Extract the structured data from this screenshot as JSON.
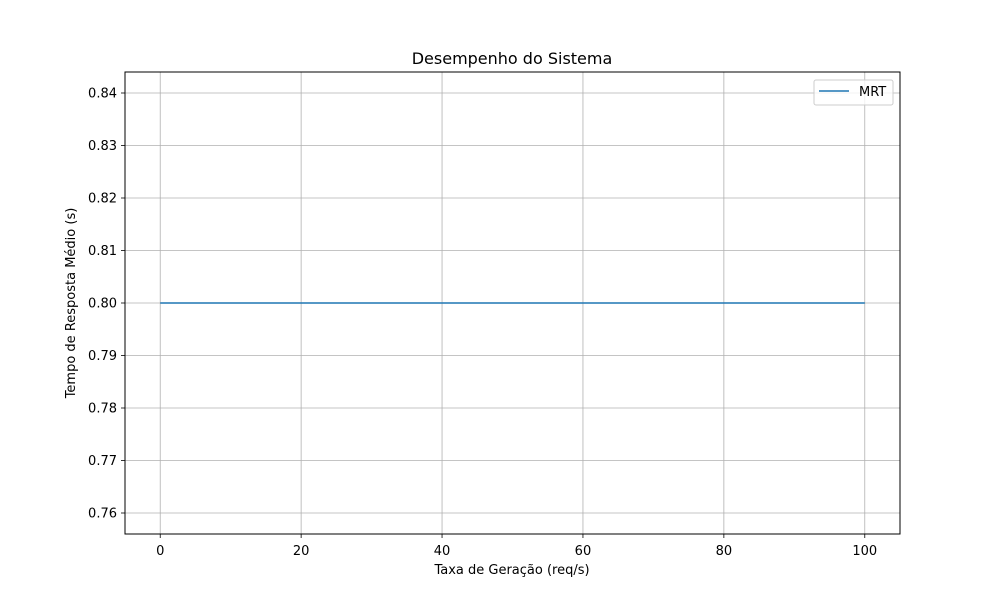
{
  "chart_data": {
    "type": "line",
    "title": "Desempenho do Sistema",
    "xlabel": "Taxa de Geração (req/s)",
    "ylabel": "Tempo de Resposta Médio (s)",
    "x": [
      0,
      100
    ],
    "series": [
      {
        "name": "MRT",
        "values": [
          0.8,
          0.8
        ],
        "color": "#1f77b4"
      }
    ],
    "xlim": [
      -5,
      105
    ],
    "ylim": [
      0.756,
      0.844
    ],
    "xticks": [
      0,
      20,
      40,
      60,
      80,
      100
    ],
    "xtick_labels": [
      "0",
      "20",
      "40",
      "60",
      "80",
      "100"
    ],
    "yticks": [
      0.76,
      0.77,
      0.78,
      0.79,
      0.8,
      0.81,
      0.82,
      0.83,
      0.84
    ],
    "ytick_labels": [
      "0.76",
      "0.77",
      "0.78",
      "0.79",
      "0.80",
      "0.81",
      "0.82",
      "0.83",
      "0.84"
    ],
    "grid": true,
    "legend_position": "upper right"
  }
}
